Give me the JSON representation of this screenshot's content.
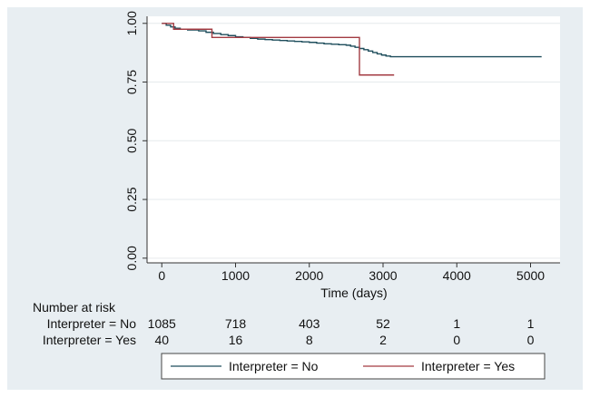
{
  "chart_data": {
    "type": "line",
    "subtype": "kaplan-meier step survival curve",
    "xlabel": "Time (days)",
    "ylabel": "",
    "xlim": [
      -200,
      5400
    ],
    "ylim": [
      -0.02,
      1.03
    ],
    "x_ticks": [
      "0",
      "1000",
      "2000",
      "3000",
      "4000",
      "5000"
    ],
    "y_ticks": [
      "0.00",
      "0.25",
      "0.50",
      "0.75",
      "1.00"
    ],
    "grid": "horizontal",
    "legend_position": "bottom",
    "colors": {
      "No": "#1f4e5c",
      "Yes": "#a33b42",
      "panel_bg": "#e8eef2",
      "plot_bg": "#ffffff"
    },
    "series": [
      {
        "name": "Interpreter = No",
        "x": [
          0,
          60,
          120,
          180,
          250,
          350,
          500,
          600,
          700,
          800,
          900,
          1000,
          1100,
          1200,
          1300,
          1400,
          1500,
          1600,
          1700,
          1800,
          1900,
          2000,
          2100,
          2200,
          2300,
          2400,
          2500,
          2560,
          2620,
          2680,
          2740,
          2800,
          2860,
          2920,
          2980,
          3040,
          3100,
          3200,
          4000,
          5150
        ],
        "y": [
          1.0,
          0.992,
          0.985,
          0.979,
          0.975,
          0.972,
          0.968,
          0.962,
          0.957,
          0.952,
          0.948,
          0.943,
          0.94,
          0.936,
          0.933,
          0.931,
          0.929,
          0.927,
          0.925,
          0.923,
          0.921,
          0.919,
          0.916,
          0.913,
          0.911,
          0.909,
          0.907,
          0.903,
          0.898,
          0.893,
          0.888,
          0.882,
          0.876,
          0.87,
          0.865,
          0.861,
          0.858,
          0.858,
          0.858,
          0.858
        ]
      },
      {
        "name": "Interpreter = Yes",
        "x": [
          0,
          160,
          680,
          2680,
          3150
        ],
        "y": [
          1.0,
          0.975,
          0.94,
          0.78,
          0.78
        ]
      }
    ],
    "risk_table": {
      "title": "Number at risk",
      "times": [
        0,
        1000,
        2000,
        3000,
        4000,
        5000
      ],
      "rows": [
        {
          "label": "Interpreter = No",
          "counts": [
            "1085",
            "718",
            "403",
            "52",
            "1",
            "1"
          ]
        },
        {
          "label": "Interpreter = Yes",
          "counts": [
            "40",
            "16",
            "8",
            "2",
            "0",
            "0"
          ]
        }
      ]
    }
  }
}
